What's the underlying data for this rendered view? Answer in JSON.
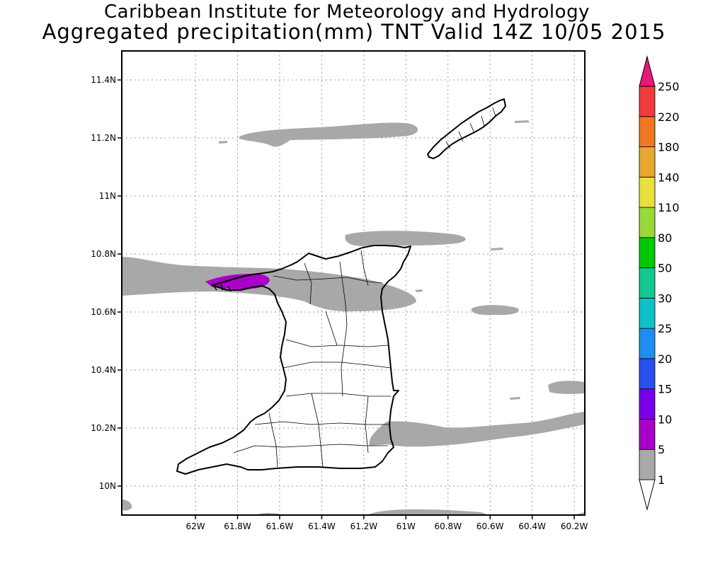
{
  "header": {
    "institute": "Caribbean Institute for Meteorology and Hydrology",
    "product": "Aggregated precipitation(mm) TNT Valid 14Z 10/05 2015"
  },
  "map": {
    "lon_range": [
      -62.35,
      -60.15
    ],
    "lat_range": [
      9.9,
      11.5
    ],
    "grid": true,
    "x_ticks": [
      "62W",
      "61.8W",
      "61.6W",
      "61.4W",
      "61.2W",
      "61W",
      "60.8W",
      "60.6W",
      "60.4W",
      "60.2W"
    ],
    "y_ticks": [
      "10N",
      "10.2N",
      "10.4N",
      "10.6N",
      "10.8N",
      "11N",
      "11.2N",
      "11.4N"
    ],
    "islands": [
      "Trinidad",
      "Tobago"
    ]
  },
  "colorbar": {
    "levels": [
      "1",
      "5",
      "10",
      "15",
      "20",
      "25",
      "30",
      "50",
      "80",
      "110",
      "140",
      "180",
      "220",
      "250"
    ],
    "colors": [
      "#a8a8a8",
      "#a800c8",
      "#7800e8",
      "#2850f0",
      "#1e8ef0",
      "#0ec0c8",
      "#10c890",
      "#00c800",
      "#98d838",
      "#e8e040",
      "#e8a830",
      "#f07820",
      "#f03c3c",
      "#e81878"
    ],
    "over_color": "#e81878",
    "under_color": "#ffffff"
  }
}
